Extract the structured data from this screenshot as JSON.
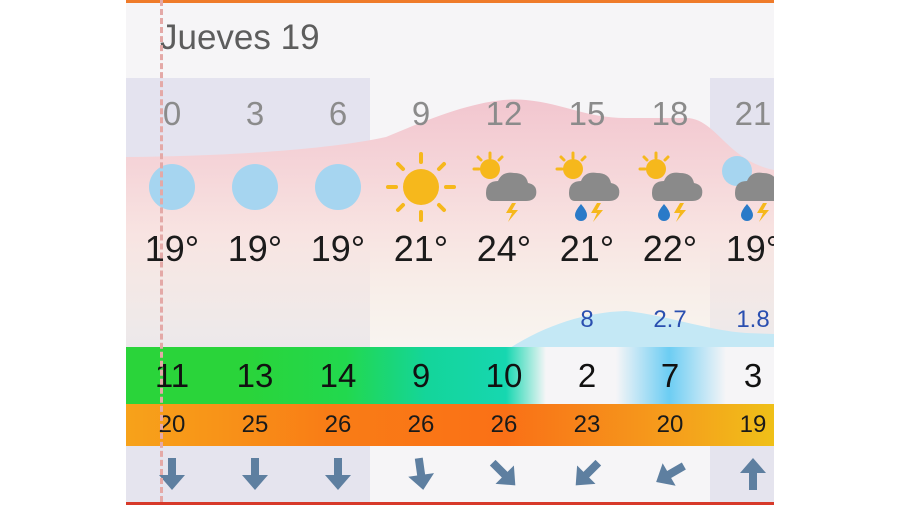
{
  "day_title": "Jueves 19",
  "hours": [
    "0",
    "3",
    "6",
    "9",
    "12",
    "15",
    "18",
    "21"
  ],
  "icons": [
    "moon-icon",
    "moon-icon",
    "moon-icon",
    "sun-icon",
    "sun-cloud-thunder-icon",
    "sun-cloud-rain-thunder-icon",
    "sun-cloud-rain-thunder-icon",
    "moon-cloud-rain-thunder-icon"
  ],
  "temperatures": [
    "19°",
    "19°",
    "19°",
    "21°",
    "24°",
    "21°",
    "22°",
    "19°"
  ],
  "precipitation": [
    "",
    "",
    "",
    "",
    "",
    "8",
    "2.7",
    "1.8"
  ],
  "wind": [
    "11",
    "13",
    "14",
    "9",
    "10",
    "2",
    "7",
    "3"
  ],
  "gusts": [
    "20",
    "25",
    "26",
    "26",
    "26",
    "23",
    "20",
    "19"
  ],
  "wind_directions": [
    "arrow-down-icon",
    "arrow-down-icon",
    "arrow-down-icon",
    "arrow-down-icon",
    "arrow-down-right-icon",
    "arrow-down-left-icon",
    "arrow-down-left-icon",
    "arrow-up-icon"
  ],
  "colors": {
    "accent_top": "#ef7b2a",
    "accent_bottom": "#d7392a",
    "temp_band": "#f2c6cf",
    "rain_band": "#c4e8f5",
    "precip_text": "#2a4fb0",
    "wind_arrow": "#5e7fa0",
    "moon": "#a6d5f0",
    "sun": "#f6b81c"
  }
}
